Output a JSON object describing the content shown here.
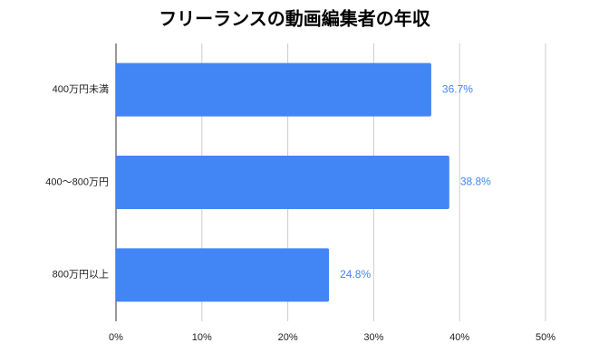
{
  "chart_data": {
    "type": "bar",
    "orientation": "horizontal",
    "title": "フリーランスの動画編集者の年収",
    "categories": [
      "400万円未満",
      "400〜800万円",
      "800万円以上"
    ],
    "values": [
      36.7,
      38.8,
      24.8
    ],
    "value_labels": [
      "36.7%",
      "38.8%",
      "24.8%"
    ],
    "color": "#4285f4",
    "xlim": [
      0,
      50
    ],
    "xticks": [
      {
        "value": 0,
        "label": "0%"
      },
      {
        "value": 10,
        "label": "10%"
      },
      {
        "value": 20,
        "label": "20%"
      },
      {
        "value": 30,
        "label": "30%"
      },
      {
        "value": 40,
        "label": "40%"
      },
      {
        "value": 50,
        "label": "50%"
      }
    ],
    "grid": true
  }
}
